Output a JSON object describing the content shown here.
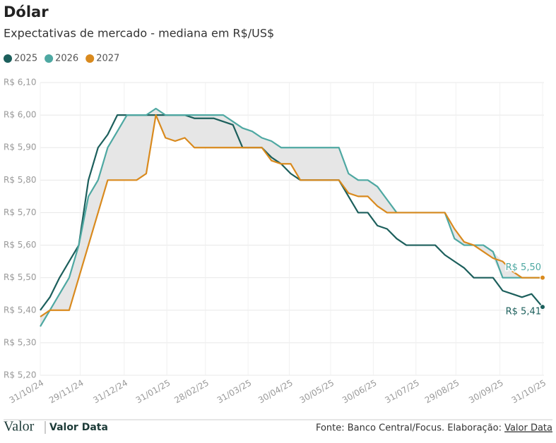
{
  "chart_data": {
    "type": "line",
    "title": "Dólar",
    "subtitle": "Expectativas de mercado - mediana em R$/US$",
    "x": [
      "31/10/24",
      "07/11/24",
      "14/11/24",
      "21/11/24",
      "28/11/24",
      "05/12/24",
      "12/12/24",
      "19/12/24",
      "26/12/24",
      "02/01/25",
      "09/01/25",
      "16/01/25",
      "23/01/25",
      "30/01/25",
      "06/02/25",
      "13/02/25",
      "20/02/25",
      "27/02/25",
      "06/03/25",
      "13/03/25",
      "20/03/25",
      "27/03/25",
      "03/04/25",
      "10/04/25",
      "17/04/25",
      "24/04/25",
      "01/05/25",
      "08/05/25",
      "15/05/25",
      "22/05/25",
      "29/05/25",
      "05/06/25",
      "12/06/25",
      "19/06/25",
      "26/06/25",
      "03/07/25",
      "10/07/25",
      "17/07/25",
      "24/07/25",
      "31/07/25",
      "07/08/25",
      "14/08/25",
      "21/08/25",
      "28/08/25",
      "04/09/25",
      "11/09/25",
      "18/09/25",
      "25/09/25",
      "02/10/25",
      "09/10/25",
      "16/10/25",
      "23/10/25",
      "31/10/25"
    ],
    "series": [
      {
        "name": "2025",
        "color": "#1c5f5c",
        "end_label": "R$ 5,41",
        "values": [
          5.4,
          5.44,
          5.5,
          5.55,
          5.6,
          5.8,
          5.9,
          5.94,
          6.0,
          6.0,
          6.0,
          6.0,
          6.0,
          6.0,
          6.0,
          6.0,
          5.99,
          5.99,
          5.99,
          5.98,
          5.97,
          5.9,
          5.9,
          5.9,
          5.87,
          5.85,
          5.82,
          5.8,
          5.8,
          5.8,
          5.8,
          5.8,
          5.75,
          5.7,
          5.7,
          5.66,
          5.65,
          5.62,
          5.6,
          5.6,
          5.6,
          5.6,
          5.57,
          5.55,
          5.53,
          5.5,
          5.5,
          5.5,
          5.46,
          5.45,
          5.44,
          5.45,
          5.41
        ]
      },
      {
        "name": "2026",
        "color": "#4ea8a2",
        "end_label": "R$ 5,50",
        "values": [
          5.35,
          5.4,
          5.45,
          5.5,
          5.6,
          5.75,
          5.8,
          5.9,
          5.95,
          6.0,
          6.0,
          6.0,
          6.02,
          6.0,
          6.0,
          6.0,
          6.0,
          6.0,
          6.0,
          6.0,
          5.98,
          5.96,
          5.95,
          5.93,
          5.92,
          5.9,
          5.9,
          5.9,
          5.9,
          5.9,
          5.9,
          5.9,
          5.82,
          5.8,
          5.8,
          5.78,
          5.74,
          5.7,
          5.7,
          5.7,
          5.7,
          5.7,
          5.7,
          5.62,
          5.6,
          5.6,
          5.6,
          5.58,
          5.5,
          5.5,
          5.5,
          5.5,
          5.5
        ]
      },
      {
        "name": "2027",
        "color": "#d98a1e",
        "values": [
          5.38,
          5.4,
          5.4,
          5.4,
          5.5,
          5.6,
          5.7,
          5.8,
          5.8,
          5.8,
          5.8,
          5.82,
          6.0,
          5.93,
          5.92,
          5.93,
          5.9,
          5.9,
          5.9,
          5.9,
          5.9,
          5.9,
          5.9,
          5.9,
          5.86,
          5.85,
          5.85,
          5.8,
          5.8,
          5.8,
          5.8,
          5.8,
          5.76,
          5.75,
          5.75,
          5.72,
          5.7,
          5.7,
          5.7,
          5.7,
          5.7,
          5.7,
          5.7,
          5.65,
          5.61,
          5.6,
          5.58,
          5.56,
          5.55,
          5.52,
          5.5,
          5.5,
          5.5
        ]
      }
    ],
    "ylim": [
      5.2,
      6.1
    ],
    "yticks": [
      {
        "value": 5.2,
        "label": "R$ 5,20"
      },
      {
        "value": 5.3,
        "label": "R$ 5,30"
      },
      {
        "value": 5.4,
        "label": "R$ 5,40"
      },
      {
        "value": 5.5,
        "label": "R$ 5,50"
      },
      {
        "value": 5.6,
        "label": "R$ 5,60"
      },
      {
        "value": 5.7,
        "label": "R$ 5,70"
      },
      {
        "value": 5.8,
        "label": "R$ 5,80"
      },
      {
        "value": 5.9,
        "label": "R$ 5,90"
      },
      {
        "value": 6.0,
        "label": "R$ 6,00"
      },
      {
        "value": 6.1,
        "label": "R$ 6,10"
      }
    ],
    "xticks": [
      "31/10/24",
      "29/11/24",
      "31/12/24",
      "31/01/25",
      "28/02/25",
      "31/03/25",
      "30/04/25",
      "30/05/25",
      "30/06/25",
      "31/07/25",
      "29/08/25",
      "30/09/25",
      "31/10/25"
    ],
    "grid": true,
    "band_color": "#e6e6e6",
    "footer": {
      "logo": "Valor",
      "brand": "Valor Data",
      "source": "Fonte: Banco Central/Focus. Elaboração:",
      "source_link": "Valor Data"
    }
  }
}
